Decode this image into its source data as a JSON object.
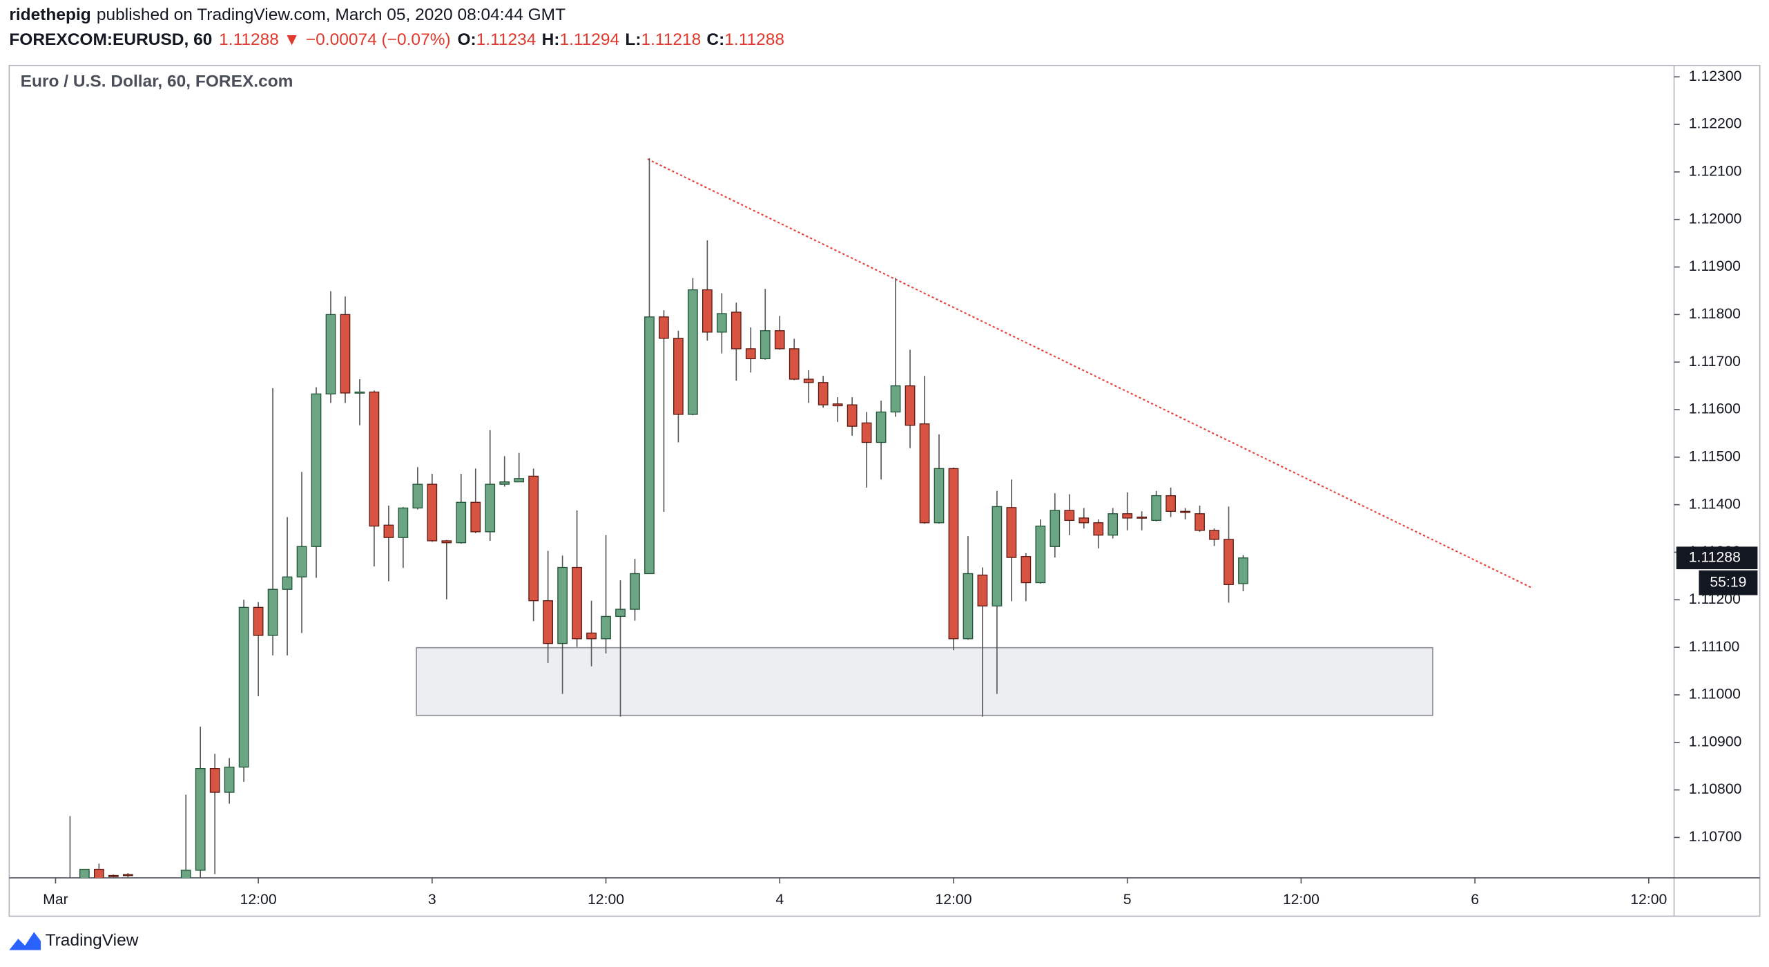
{
  "header": {
    "author": "ridethepig",
    "published": "published on TradingView.com, March 05, 2020 08:04:44 GMT",
    "symbol": "FOREXCOM:EURUSD, 60",
    "price": "1.11288",
    "arrow": "▼",
    "change": "−0.00074 (−0.07%)",
    "ohlc": [
      {
        "label": "O:",
        "value": "1.11234"
      },
      {
        "label": "H:",
        "value": "1.11294"
      },
      {
        "label": "L:",
        "value": "1.11218"
      },
      {
        "label": "C:",
        "value": "1.11288"
      }
    ]
  },
  "chart_data": {
    "type": "candlestick",
    "title": "Euro / U.S. Dollar, 60, FOREX.com",
    "categories": [
      null,
      null,
      null,
      null,
      null,
      null,
      null,
      null,
      null,
      null,
      null,
      null,
      null,
      null,
      null,
      null,
      null,
      null,
      null,
      null,
      null,
      null,
      null,
      null,
      null,
      null,
      null,
      null,
      null,
      null,
      null,
      null,
      null,
      null,
      null,
      null,
      null,
      null,
      null,
      null,
      null,
      null,
      null,
      null,
      null,
      null,
      null,
      null,
      null,
      null,
      null,
      null,
      null,
      null,
      null,
      null,
      null,
      null,
      null,
      null,
      null,
      null,
      null,
      null,
      null,
      null,
      null,
      null,
      null,
      null,
      null,
      null,
      null,
      null,
      null,
      null,
      null,
      null,
      null,
      null,
      null,
      null
    ],
    "open": [
      1.106,
      1.1061,
      1.10633,
      1.1062,
      1.10622,
      null,
      null,
      null,
      1.1056,
      1.10631,
      1.10845,
      1.10795,
      1.10848,
      1.11184,
      1.11125,
      1.11222,
      1.11248,
      1.11312,
      1.11633,
      1.118,
      1.11635,
      1.11637,
      1.11357,
      1.11331,
      1.11393,
      1.11443,
      1.11324,
      1.1132,
      1.11405,
      1.11343,
      1.11443,
      1.11448,
      1.1146,
      1.11198,
      1.11108,
      1.11268,
      1.1113,
      1.11118,
      1.11165,
      1.1118,
      1.11255,
      1.11795,
      1.1175,
      1.1159,
      1.11852,
      1.11763,
      1.11805,
      1.11728,
      1.11707,
      1.11766,
      1.11728,
      1.11664,
      1.11657,
      1.11612,
      1.1161,
      1.11572,
      1.11531,
      1.11595,
      1.1165,
      1.1157,
      1.11362,
      1.11476,
      1.11118,
      1.11252,
      1.11187,
      1.11394,
      1.11291,
      1.11236,
      1.11312,
      1.11388,
      1.11372,
      1.11362,
      1.11336,
      1.11381,
      1.11374,
      1.11367,
      1.11419,
      1.11386,
      1.11381,
      1.11346,
      1.11327,
      1.11234
    ],
    "high": [
      1.10745,
      1.10633,
      1.10645,
      1.10622,
      1.10625,
      null,
      null,
      null,
      1.1079,
      1.10933,
      1.10876,
      1.10867,
      1.112,
      1.11195,
      1.11645,
      1.11374,
      1.11469,
      1.11647,
      1.11849,
      1.11838,
      1.11664,
      1.1164,
      1.11398,
      1.11395,
      1.11479,
      1.11465,
      1.11326,
      1.11465,
      1.11476,
      1.11557,
      1.11502,
      1.11509,
      1.11476,
      1.11303,
      1.11293,
      1.11388,
      1.11198,
      1.11336,
      1.11241,
      1.11286,
      1.12129,
      1.11809,
      1.11766,
      1.11877,
      1.11956,
      1.11845,
      1.11825,
      1.11773,
      1.11854,
      1.11797,
      1.11749,
      1.11683,
      1.11671,
      1.11626,
      1.11626,
      1.11595,
      1.11619,
      1.11877,
      1.11726,
      1.11671,
      1.11548,
      1.11478,
      1.11334,
      1.11268,
      1.11429,
      1.11453,
      1.11298,
      1.11369,
      1.11424,
      1.11422,
      1.11393,
      1.11369,
      1.11393,
      1.11426,
      1.11386,
      1.11429,
      1.11436,
      1.11393,
      1.11398,
      1.1135,
      1.11396,
      1.11294
    ],
    "low": [
      1.1058,
      1.106,
      1.106,
      1.106,
      1.106,
      null,
      null,
      null,
      1.105,
      1.106,
      1.10623,
      1.10771,
      1.10817,
      1.10997,
      1.11083,
      1.11083,
      1.1113,
      1.11246,
      1.11614,
      1.11614,
      1.11567,
      1.1127,
      1.11239,
      1.11267,
      1.1139,
      1.11322,
      1.11201,
      1.11318,
      1.1134,
      1.11324,
      1.11438,
      1.11448,
      1.11155,
      1.11067,
      1.11002,
      1.11101,
      1.1106,
      1.11087,
      1.10954,
      1.11156,
      1.11255,
      1.11385,
      1.11531,
      1.11588,
      1.11745,
      1.11718,
      1.11661,
      1.11678,
      1.11705,
      1.11726,
      1.11662,
      1.11614,
      1.11604,
      1.11574,
      1.11545,
      1.11436,
      1.11453,
      1.11585,
      1.11519,
      1.1136,
      1.1136,
      1.11094,
      1.11116,
      1.10954,
      1.11002,
      1.11197,
      1.11197,
      1.11234,
      1.11289,
      1.11336,
      1.1135,
      1.11308,
      1.11329,
      1.11346,
      1.11346,
      1.11365,
      1.11374,
      1.11369,
      1.11343,
      1.11313,
      1.11194,
      1.11218
    ],
    "close": [
      1.1061,
      1.10633,
      1.1061,
      1.10618,
      1.1062,
      null,
      null,
      null,
      1.10631,
      1.10845,
      1.10795,
      1.10848,
      1.11184,
      1.11125,
      1.11222,
      1.11248,
      1.11312,
      1.11633,
      1.118,
      1.11635,
      1.11637,
      1.11355,
      1.11331,
      1.11393,
      1.11443,
      1.11324,
      1.1132,
      1.11405,
      1.11343,
      1.11443,
      1.11448,
      1.11455,
      1.11198,
      1.11108,
      1.11268,
      1.11118,
      1.11118,
      1.11165,
      1.1118,
      1.11255,
      1.11795,
      1.1175,
      1.1159,
      1.11852,
      1.11763,
      1.11802,
      1.11728,
      1.11707,
      1.11766,
      1.11728,
      1.11664,
      1.11657,
      1.1161,
      1.11608,
      1.11565,
      1.11531,
      1.11595,
      1.1165,
      1.11567,
      1.11362,
      1.11476,
      1.11118,
      1.11255,
      1.11187,
      1.11396,
      1.11289,
      1.11236,
      1.11355,
      1.11388,
      1.11367,
      1.11362,
      1.11336,
      1.11381,
      1.11372,
      1.11372,
      1.11419,
      1.11386,
      1.11384,
      1.11346,
      1.11327,
      1.11232,
      1.11288
    ],
    "up_color": "#6ba583",
    "down_color": "#d75442",
    "up_border": "#225437",
    "down_border": "#5b1a13",
    "wick_color": "#555555",
    "xlim": [
      -4.2,
      110.75
    ],
    "xticks": [
      {
        "value": -1,
        "label": "Mar"
      },
      {
        "value": 13,
        "label": "12:00"
      },
      {
        "value": 25,
        "label": "3"
      },
      {
        "value": 37,
        "label": "12:00"
      },
      {
        "value": 49,
        "label": "4"
      },
      {
        "value": 61,
        "label": "12:00"
      },
      {
        "value": 73,
        "label": "5"
      },
      {
        "value": 85,
        "label": "12:00"
      },
      {
        "value": 97,
        "label": "6"
      },
      {
        "value": 109,
        "label": "12:00"
      }
    ],
    "ylim": [
      1.10615,
      1.12324
    ],
    "yticks": [
      {
        "value": 1.123,
        "label": "1.12300"
      },
      {
        "value": 1.122,
        "label": "1.12200"
      },
      {
        "value": 1.121,
        "label": "1.12100"
      },
      {
        "value": 1.12,
        "label": "1.12000"
      },
      {
        "value": 1.119,
        "label": "1.11900"
      },
      {
        "value": 1.118,
        "label": "1.11800"
      },
      {
        "value": 1.117,
        "label": "1.11700"
      },
      {
        "value": 1.116,
        "label": "1.11600"
      },
      {
        "value": 1.115,
        "label": "1.11500"
      },
      {
        "value": 1.114,
        "label": "1.11400"
      },
      {
        "value": 1.113,
        "label": "1.11300"
      },
      {
        "value": 1.112,
        "label": "1.11200"
      },
      {
        "value": 1.111,
        "label": "1.11100"
      },
      {
        "value": 1.11,
        "label": "1.11000"
      },
      {
        "value": 1.109,
        "label": "1.10900"
      },
      {
        "value": 1.108,
        "label": "1.10800"
      },
      {
        "value": 1.107,
        "label": "1.10700"
      }
    ],
    "grid": false,
    "last_price": {
      "value": 1.11288,
      "label": "1.11288"
    },
    "countdown": "55:19"
  },
  "footer": {
    "brand": "TradingView"
  }
}
